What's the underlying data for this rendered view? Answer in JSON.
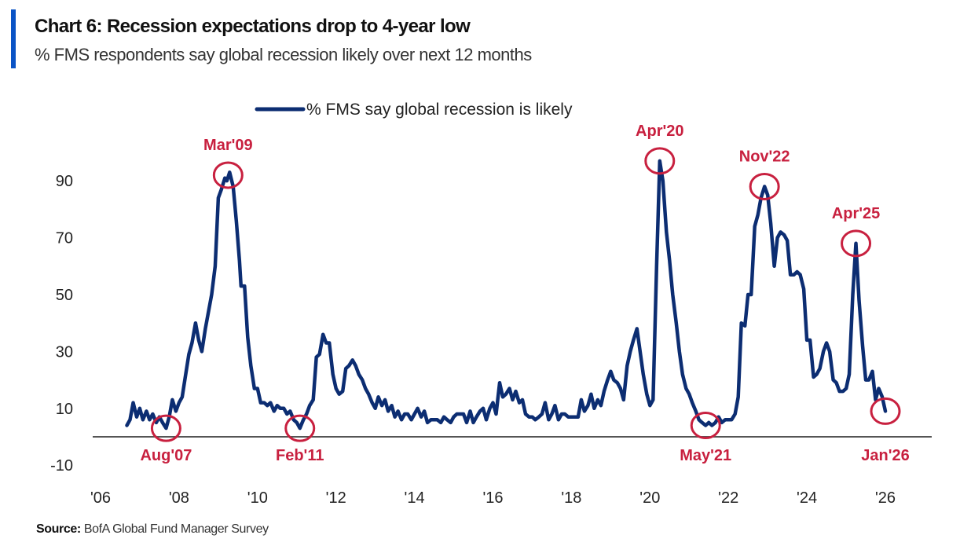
{
  "header": {
    "title": "Chart 6: Recession expectations drop to 4-year low",
    "subtitle": "% FMS respondents say global recession likely over next 12 months",
    "accent_color": "#0b54c6"
  },
  "footer": {
    "source_label": "Source:",
    "source_text": "BofA Global Fund Manager Survey"
  },
  "chart_data": {
    "type": "line",
    "title": "Chart 6: Recession expectations drop to 4-year low",
    "subtitle": "% FMS respondents say global recession likely over next 12 months",
    "xlabel": "",
    "ylabel": "",
    "xlim": [
      2006,
      2028
    ],
    "ylim": [
      -10,
      100
    ],
    "grid": false,
    "legend_position": "top-center",
    "baseline": 0,
    "y_ticks": [
      90,
      70,
      50,
      30,
      10,
      -10
    ],
    "y_tick_labels": [
      "90",
      "70",
      "50",
      "30",
      "10",
      "-10"
    ],
    "x_ticks": [
      2006,
      2008,
      2010,
      2012,
      2014,
      2016,
      2018,
      2020,
      2022,
      2024,
      2026
    ],
    "x_tick_labels": [
      "'06",
      "'08",
      "'10",
      "'12",
      "'14",
      "'16",
      "'18",
      "'20",
      "'22",
      "'24",
      "'26"
    ],
    "series": [
      {
        "name": "% FMS say global recession is likely",
        "color": "#0c2d72",
        "points": [
          [
            2006.67,
            4
          ],
          [
            2006.75,
            6
          ],
          [
            2006.83,
            12
          ],
          [
            2006.92,
            7
          ],
          [
            2007.0,
            10
          ],
          [
            2007.08,
            6
          ],
          [
            2007.17,
            9
          ],
          [
            2007.25,
            6
          ],
          [
            2007.33,
            8
          ],
          [
            2007.42,
            5
          ],
          [
            2007.5,
            7
          ],
          [
            2007.58,
            5
          ],
          [
            2007.67,
            3
          ],
          [
            2007.75,
            7
          ],
          [
            2007.83,
            13
          ],
          [
            2007.92,
            9
          ],
          [
            2008.0,
            12
          ],
          [
            2008.08,
            14
          ],
          [
            2008.17,
            22
          ],
          [
            2008.25,
            29
          ],
          [
            2008.33,
            33
          ],
          [
            2008.42,
            40
          ],
          [
            2008.5,
            34
          ],
          [
            2008.58,
            30
          ],
          [
            2008.67,
            38
          ],
          [
            2008.75,
            44
          ],
          [
            2008.83,
            50
          ],
          [
            2008.92,
            60
          ],
          [
            2009.0,
            84
          ],
          [
            2009.08,
            87
          ],
          [
            2009.17,
            91
          ],
          [
            2009.22,
            90
          ],
          [
            2009.29,
            93
          ],
          [
            2009.38,
            88
          ],
          [
            2009.46,
            76
          ],
          [
            2009.54,
            62
          ],
          [
            2009.58,
            53
          ],
          [
            2009.67,
            53
          ],
          [
            2009.75,
            35
          ],
          [
            2009.83,
            25
          ],
          [
            2009.92,
            17
          ],
          [
            2010.0,
            17
          ],
          [
            2010.08,
            12
          ],
          [
            2010.17,
            12
          ],
          [
            2010.25,
            11
          ],
          [
            2010.33,
            12
          ],
          [
            2010.42,
            9
          ],
          [
            2010.5,
            11
          ],
          [
            2010.58,
            10
          ],
          [
            2010.67,
            10
          ],
          [
            2010.75,
            8
          ],
          [
            2010.83,
            9
          ],
          [
            2010.92,
            6
          ],
          [
            2011.0,
            5
          ],
          [
            2011.08,
            3
          ],
          [
            2011.17,
            6
          ],
          [
            2011.25,
            8
          ],
          [
            2011.33,
            11
          ],
          [
            2011.42,
            13
          ],
          [
            2011.5,
            28
          ],
          [
            2011.58,
            29
          ],
          [
            2011.67,
            36
          ],
          [
            2011.75,
            33
          ],
          [
            2011.83,
            33
          ],
          [
            2011.92,
            22
          ],
          [
            2012.0,
            17
          ],
          [
            2012.08,
            15
          ],
          [
            2012.17,
            16
          ],
          [
            2012.25,
            24
          ],
          [
            2012.33,
            25
          ],
          [
            2012.42,
            27
          ],
          [
            2012.5,
            25
          ],
          [
            2012.58,
            22
          ],
          [
            2012.67,
            20
          ],
          [
            2012.75,
            17
          ],
          [
            2012.83,
            15
          ],
          [
            2012.92,
            12
          ],
          [
            2013.0,
            10
          ],
          [
            2013.08,
            14
          ],
          [
            2013.17,
            11
          ],
          [
            2013.25,
            13
          ],
          [
            2013.33,
            9
          ],
          [
            2013.42,
            11
          ],
          [
            2013.5,
            7
          ],
          [
            2013.58,
            9
          ],
          [
            2013.67,
            6
          ],
          [
            2013.75,
            8
          ],
          [
            2013.83,
            8
          ],
          [
            2013.92,
            6
          ],
          [
            2014.0,
            8
          ],
          [
            2014.08,
            10
          ],
          [
            2014.17,
            7
          ],
          [
            2014.25,
            9
          ],
          [
            2014.33,
            5
          ],
          [
            2014.42,
            6
          ],
          [
            2014.5,
            6
          ],
          [
            2014.58,
            6
          ],
          [
            2014.67,
            5
          ],
          [
            2014.75,
            7
          ],
          [
            2014.83,
            6
          ],
          [
            2014.92,
            5
          ],
          [
            2015.0,
            7
          ],
          [
            2015.08,
            8
          ],
          [
            2015.17,
            8
          ],
          [
            2015.25,
            8
          ],
          [
            2015.33,
            5
          ],
          [
            2015.42,
            9
          ],
          [
            2015.5,
            5
          ],
          [
            2015.58,
            7
          ],
          [
            2015.67,
            9
          ],
          [
            2015.75,
            10
          ],
          [
            2015.83,
            6
          ],
          [
            2015.92,
            10
          ],
          [
            2016.0,
            12
          ],
          [
            2016.08,
            8
          ],
          [
            2016.17,
            19
          ],
          [
            2016.25,
            14
          ],
          [
            2016.33,
            15
          ],
          [
            2016.42,
            17
          ],
          [
            2016.5,
            13
          ],
          [
            2016.58,
            16
          ],
          [
            2016.67,
            12
          ],
          [
            2016.75,
            13
          ],
          [
            2016.83,
            8
          ],
          [
            2016.92,
            7
          ],
          [
            2017.0,
            7
          ],
          [
            2017.08,
            6
          ],
          [
            2017.17,
            7
          ],
          [
            2017.25,
            8
          ],
          [
            2017.33,
            12
          ],
          [
            2017.42,
            6
          ],
          [
            2017.5,
            8
          ],
          [
            2017.58,
            11
          ],
          [
            2017.67,
            6
          ],
          [
            2017.75,
            8
          ],
          [
            2017.83,
            8
          ],
          [
            2017.92,
            7
          ],
          [
            2018.0,
            7
          ],
          [
            2018.08,
            7
          ],
          [
            2018.17,
            7
          ],
          [
            2018.25,
            13
          ],
          [
            2018.33,
            9
          ],
          [
            2018.42,
            11
          ],
          [
            2018.5,
            15
          ],
          [
            2018.58,
            10
          ],
          [
            2018.67,
            13
          ],
          [
            2018.75,
            11
          ],
          [
            2018.83,
            16
          ],
          [
            2018.92,
            20
          ],
          [
            2019.0,
            23
          ],
          [
            2019.08,
            20
          ],
          [
            2019.17,
            19
          ],
          [
            2019.25,
            17
          ],
          [
            2019.33,
            13
          ],
          [
            2019.42,
            25
          ],
          [
            2019.5,
            30
          ],
          [
            2019.58,
            34
          ],
          [
            2019.67,
            38
          ],
          [
            2019.75,
            30
          ],
          [
            2019.83,
            22
          ],
          [
            2019.92,
            15
          ],
          [
            2020.0,
            11
          ],
          [
            2020.08,
            13
          ],
          [
            2020.17,
            60
          ],
          [
            2020.25,
            97
          ],
          [
            2020.33,
            90
          ],
          [
            2020.42,
            72
          ],
          [
            2020.5,
            62
          ],
          [
            2020.58,
            50
          ],
          [
            2020.67,
            40
          ],
          [
            2020.75,
            30
          ],
          [
            2020.83,
            22
          ],
          [
            2020.92,
            17
          ],
          [
            2021.0,
            15
          ],
          [
            2021.08,
            12
          ],
          [
            2021.17,
            9
          ],
          [
            2021.25,
            6
          ],
          [
            2021.33,
            5
          ],
          [
            2021.42,
            4
          ],
          [
            2021.5,
            5
          ],
          [
            2021.58,
            4
          ],
          [
            2021.67,
            5
          ],
          [
            2021.75,
            7
          ],
          [
            2021.83,
            5
          ],
          [
            2021.92,
            6
          ],
          [
            2022.0,
            6
          ],
          [
            2022.08,
            6
          ],
          [
            2022.17,
            8
          ],
          [
            2022.25,
            14
          ],
          [
            2022.33,
            40
          ],
          [
            2022.42,
            39
          ],
          [
            2022.5,
            50
          ],
          [
            2022.58,
            50
          ],
          [
            2022.67,
            74
          ],
          [
            2022.75,
            78
          ],
          [
            2022.83,
            84
          ],
          [
            2022.92,
            88
          ],
          [
            2023.0,
            85
          ],
          [
            2023.08,
            75
          ],
          [
            2023.17,
            60
          ],
          [
            2023.25,
            70
          ],
          [
            2023.33,
            72
          ],
          [
            2023.42,
            71
          ],
          [
            2023.5,
            69
          ],
          [
            2023.58,
            57
          ],
          [
            2023.67,
            57
          ],
          [
            2023.75,
            58
          ],
          [
            2023.83,
            57
          ],
          [
            2023.92,
            52
          ],
          [
            2024.0,
            34
          ],
          [
            2024.08,
            34
          ],
          [
            2024.17,
            21
          ],
          [
            2024.25,
            22
          ],
          [
            2024.33,
            24
          ],
          [
            2024.42,
            30
          ],
          [
            2024.5,
            33
          ],
          [
            2024.58,
            30
          ],
          [
            2024.67,
            20
          ],
          [
            2024.75,
            19
          ],
          [
            2024.83,
            16
          ],
          [
            2024.92,
            16
          ],
          [
            2025.0,
            17
          ],
          [
            2025.08,
            22
          ],
          [
            2025.17,
            50
          ],
          [
            2025.25,
            68
          ],
          [
            2025.33,
            48
          ],
          [
            2025.42,
            32
          ],
          [
            2025.5,
            20
          ],
          [
            2025.58,
            20
          ],
          [
            2025.67,
            23
          ],
          [
            2025.75,
            13
          ],
          [
            2025.83,
            17
          ],
          [
            2025.92,
            14
          ],
          [
            2026.0,
            9
          ]
        ]
      }
    ],
    "annotations": [
      {
        "label": "Aug'07",
        "x": 2007.67,
        "y": 3,
        "label_position": "below"
      },
      {
        "label": "Mar'09",
        "x": 2009.25,
        "y": 92,
        "label_position": "above"
      },
      {
        "label": "Feb'11",
        "x": 2011.08,
        "y": 3,
        "label_position": "below"
      },
      {
        "label": "Apr'20",
        "x": 2020.25,
        "y": 97,
        "label_position": "above"
      },
      {
        "label": "May'21",
        "x": 2021.42,
        "y": 4,
        "label_position": "below"
      },
      {
        "label": "Nov'22",
        "x": 2022.92,
        "y": 88,
        "label_position": "above"
      },
      {
        "label": "Apr'25",
        "x": 2025.25,
        "y": 68,
        "label_position": "above"
      },
      {
        "label": "Jan'26",
        "x": 2026.0,
        "y": 9,
        "label_position": "below"
      }
    ],
    "annotation_color": "#c8203f"
  }
}
